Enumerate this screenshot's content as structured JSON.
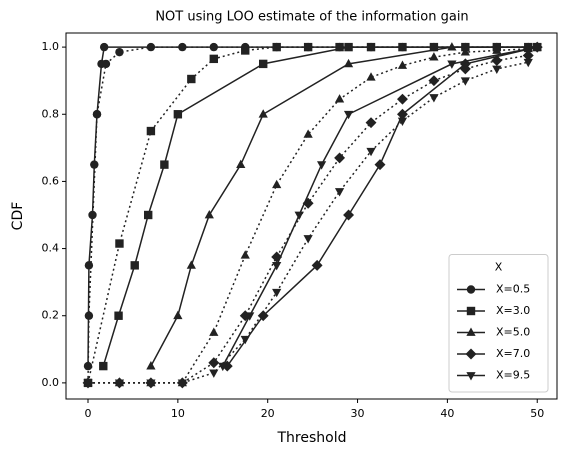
{
  "chart_data": {
    "type": "line",
    "title": "NOT using LOO estimate of the information gain",
    "x_label": "Threshold",
    "y_label": "CDF",
    "xlim": [
      -2.45,
      52.2
    ],
    "ylim": [
      -0.048,
      1.042
    ],
    "xticks": [
      0,
      10,
      20,
      30,
      40,
      50
    ],
    "yticks": [
      {
        "value": 0,
        "label": "0.0"
      },
      0.2,
      0.4,
      0.6,
      0.8,
      {
        "value": 1,
        "label": "1.0"
      }
    ],
    "legend_title": "X",
    "legend_position": "lower right",
    "color": "#222222",
    "series": [
      {
        "name": "X=0.5",
        "marker": "circle",
        "linestyle": "solid",
        "x": [
          0,
          0.1,
          0.5,
          0.7,
          1.0,
          1.5,
          1.8,
          50
        ],
        "values": [
          0.05,
          0.35,
          0.5,
          0.65,
          0.8,
          0.95,
          1.0,
          1.0
        ]
      },
      {
        "marker": "circle",
        "linestyle": "dotted",
        "x": [
          0,
          0.1,
          1.0,
          2,
          3.5,
          7,
          10.5,
          14,
          17.5,
          21,
          24.5,
          28,
          31.5,
          35,
          38.5,
          42,
          45.5,
          49
        ],
        "values": [
          0,
          0.2,
          0.8,
          0.95,
          0.985,
          1,
          1,
          1,
          1,
          1,
          1,
          1,
          1,
          1,
          1,
          1,
          1,
          1
        ]
      },
      {
        "name": "X=3.0",
        "marker": "square",
        "linestyle": "solid",
        "x": [
          1.7,
          3.4,
          5.2,
          6.7,
          8.5,
          10,
          19.5,
          29,
          50
        ],
        "values": [
          0.05,
          0.2,
          0.35,
          0.5,
          0.65,
          0.8,
          0.95,
          1.0,
          1.0
        ]
      },
      {
        "marker": "square",
        "linestyle": "dotted",
        "x": [
          0,
          3.5,
          7,
          11.5,
          14,
          17.5,
          21,
          24.5,
          28,
          31.5,
          35,
          38.5,
          42,
          45.5,
          49
        ],
        "values": [
          0,
          0.415,
          0.75,
          0.905,
          0.965,
          0.99,
          1,
          1,
          1,
          1,
          1,
          1,
          1,
          1,
          1
        ]
      },
      {
        "name": "X=5.0",
        "marker": "triangle-up",
        "linestyle": "solid",
        "x": [
          7,
          10,
          11.5,
          13.5,
          17,
          19.5,
          29,
          40.5,
          50
        ],
        "values": [
          0.05,
          0.2,
          0.35,
          0.5,
          0.65,
          0.8,
          0.95,
          1.0,
          1.0
        ]
      },
      {
        "marker": "triangle-up",
        "linestyle": "dotted",
        "x": [
          0,
          3.5,
          7,
          10.5,
          14,
          17.5,
          21,
          24.5,
          28,
          31.5,
          35,
          38.5,
          42,
          45.5,
          49
        ],
        "values": [
          0,
          0,
          0,
          0,
          0.15,
          0.38,
          0.59,
          0.74,
          0.845,
          0.91,
          0.945,
          0.97,
          0.985,
          0.99,
          0.995
        ]
      },
      {
        "name": "X=7.0",
        "marker": "diamond",
        "linestyle": "solid",
        "x": [
          15.5,
          19.5,
          25.5,
          29,
          32.5,
          35,
          42,
          50
        ],
        "values": [
          0.05,
          0.2,
          0.35,
          0.5,
          0.65,
          0.8,
          0.95,
          1.0
        ]
      },
      {
        "marker": "diamond",
        "linestyle": "dotted",
        "x": [
          0,
          3.5,
          7,
          10.5,
          14,
          17.5,
          21,
          24.5,
          28,
          31.5,
          35,
          38.5,
          42,
          45.5,
          49
        ],
        "values": [
          0,
          0,
          0,
          0,
          0.06,
          0.2,
          0.375,
          0.535,
          0.67,
          0.775,
          0.845,
          0.9,
          0.935,
          0.96,
          0.975
        ]
      },
      {
        "name": "X=9.5",
        "marker": "triangle-down",
        "linestyle": "solid",
        "x": [
          15,
          18,
          21,
          23.5,
          26,
          29,
          40.5,
          50
        ],
        "values": [
          0.05,
          0.2,
          0.35,
          0.5,
          0.65,
          0.8,
          0.95,
          1.0
        ]
      },
      {
        "marker": "triangle-down",
        "linestyle": "dotted",
        "x": [
          0,
          3.5,
          7,
          10.5,
          14,
          17.5,
          21,
          24.5,
          28,
          31.5,
          35,
          38.5,
          42,
          45.5,
          49
        ],
        "values": [
          0,
          0,
          0,
          0,
          0.03,
          0.13,
          0.27,
          0.43,
          0.57,
          0.69,
          0.78,
          0.85,
          0.9,
          0.935,
          0.955
        ]
      }
    ]
  }
}
